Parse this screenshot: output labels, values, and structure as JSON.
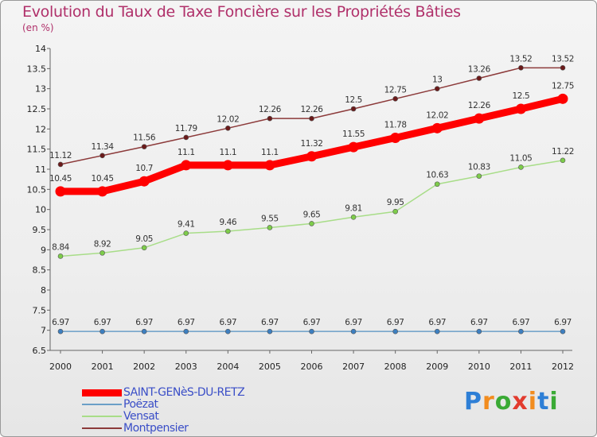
{
  "header": {
    "title": "Evolution du Taux de Taxe Foncière sur les Propriétés Bâties",
    "subtitle": "(en %)"
  },
  "logo": {
    "text": "Proxiti",
    "letters": [
      "P",
      "r",
      "o",
      "x",
      "i",
      "t",
      "i"
    ],
    "colors": [
      "#2e7fd6",
      "#f28c1e",
      "#3aaa35",
      "#e23b2e",
      "#f28c1e",
      "#2e7fd6",
      "#3aaa35"
    ]
  },
  "chart_data": {
    "type": "line",
    "title": "Evolution du Taux de Taxe Foncière sur les Propriétés Bâties",
    "ylabel": "(en %)",
    "xlabel": "",
    "categories": [
      "2000",
      "2001",
      "2002",
      "2003",
      "2004",
      "2005",
      "2006",
      "2007",
      "2008",
      "2009",
      "2010",
      "2011",
      "2012"
    ],
    "ylim": [
      6.5,
      14
    ],
    "yticks": [
      "6.5",
      "7",
      "7.5",
      "8",
      "8.5",
      "9",
      "9.5",
      "10",
      "10.5",
      "11",
      "11.5",
      "12",
      "12.5",
      "13",
      "13.5",
      "14"
    ],
    "grid": false,
    "legend_position": "bottom-left",
    "series": [
      {
        "name": "SAINT-GENèS-DU-RETZ",
        "color": "#ff0000",
        "markerColor": "#ff0000",
        "width": 9,
        "values": [
          10.45,
          10.45,
          10.7,
          11.1,
          11.1,
          11.1,
          11.32,
          11.55,
          11.78,
          12.02,
          12.26,
          12.5,
          12.75
        ],
        "labels": [
          "10.45",
          "10.45",
          "10.7",
          "11.1",
          "11.1",
          "11.1",
          "11.32",
          "11.55",
          "11.78",
          "12.02",
          "12.26",
          "12.5",
          "12.75"
        ]
      },
      {
        "name": "Poëzat",
        "color": "#6b9fc7",
        "markerColor": "#3d7fc0",
        "width": 1.5,
        "values": [
          6.97,
          6.97,
          6.97,
          6.97,
          6.97,
          6.97,
          6.97,
          6.97,
          6.97,
          6.97,
          6.97,
          6.97,
          6.97
        ],
        "labels": [
          "6.97",
          "6.97",
          "6.97",
          "6.97",
          "6.97",
          "6.97",
          "6.97",
          "6.97",
          "6.97",
          "6.97",
          "6.97",
          "6.97",
          "6.97"
        ]
      },
      {
        "name": "Vensat",
        "color": "#a8dd88",
        "markerColor": "#7dcc4a",
        "width": 1.5,
        "values": [
          8.84,
          8.92,
          9.05,
          9.41,
          9.46,
          9.55,
          9.65,
          9.81,
          9.95,
          10.63,
          10.83,
          11.05,
          11.22
        ],
        "labels": [
          "8.84",
          "8.92",
          "9.05",
          "9.41",
          "9.46",
          "9.55",
          "9.65",
          "9.81",
          "9.95",
          "10.63",
          "10.83",
          "11.05",
          "11.22"
        ]
      },
      {
        "name": "Montpensier",
        "color": "#8c3a3a",
        "markerColor": "#6b1a1a",
        "width": 1.5,
        "values": [
          11.12,
          11.34,
          11.56,
          11.79,
          12.02,
          12.26,
          12.26,
          12.5,
          12.75,
          13,
          13.26,
          13.52,
          13.52
        ],
        "labels": [
          "11.12",
          "11.34",
          "11.56",
          "11.79",
          "12.02",
          "12.26",
          "12.26",
          "12.5",
          "12.75",
          "13",
          "13.26",
          "13.52",
          "13.52"
        ]
      }
    ]
  }
}
